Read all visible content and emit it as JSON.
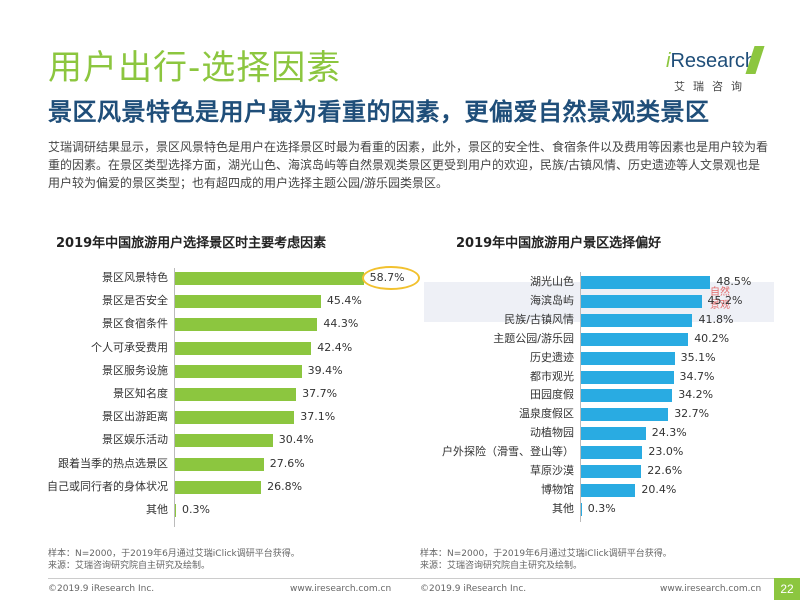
{
  "header": {
    "title": "用户出行-选择因素",
    "subtitle": "景区风景特色是用户最为看重的因素，更偏爱自然景观类景区",
    "description": "艾瑞调研结果显示，景区风景特色是用户在选择景区时最为看重的因素，此外，景区的安全性、食宿条件以及费用等因素也是用户较为看重的因素。在景区类型选择方面，湖光山色、海滨岛屿等自然景观类景区更受到用户的欢迎，民族/古镇风情、历史遗迹等人文景观也是用户较为偏爱的景区类型；也有超四成的用户选择主题公园/游乐园类景区。"
  },
  "logo": {
    "brand_i": "i",
    "brand_rest": "Research",
    "sub": "艾瑞咨询"
  },
  "colors": {
    "bar": "#8cc63f",
    "bar_right": "#29abe2",
    "title": "#8cc63f",
    "subtitle": "#1f4e79"
  },
  "chart_data": [
    {
      "type": "bar",
      "orientation": "horizontal",
      "title": "2019年中国旅游用户选择景区时主要考虑因素",
      "categories": [
        "景区风景特色",
        "景区是否安全",
        "景区食宿条件",
        "个人可承受费用",
        "景区服务设施",
        "景区知名度",
        "景区出游距离",
        "景区娱乐活动",
        "跟着当季的热点选景区",
        "自己或同行者的身体状况",
        "其他"
      ],
      "values": [
        58.7,
        45.4,
        44.3,
        42.4,
        39.4,
        37.7,
        37.1,
        30.4,
        27.6,
        26.8,
        0.3
      ],
      "value_labels": [
        "58.7%",
        "45.4%",
        "44.3%",
        "42.4%",
        "39.4%",
        "37.7%",
        "37.1%",
        "30.4%",
        "27.6%",
        "26.8%",
        "0.3%"
      ],
      "xlim": [
        0,
        70
      ],
      "highlight_index": 0
    },
    {
      "type": "bar",
      "orientation": "horizontal",
      "title": "2019年中国旅游用户景区选择偏好",
      "categories": [
        "湖光山色",
        "海滨岛屿",
        "民族/古镇风情",
        "主题公园/游乐园",
        "历史遗迹",
        "都市观光",
        "田园度假",
        "温泉度假区",
        "动植物园",
        "户外探险（滑雪、登山等）",
        "草原沙漠",
        "博物馆",
        "其他"
      ],
      "values": [
        48.5,
        45.2,
        41.8,
        40.2,
        35.1,
        34.7,
        34.2,
        32.7,
        24.3,
        23.0,
        22.6,
        20.4,
        0.3
      ],
      "value_labels": [
        "48.5%",
        "45.2%",
        "41.8%",
        "40.2%",
        "35.1%",
        "34.7%",
        "34.2%",
        "32.7%",
        "24.3%",
        "23.0%",
        "22.6%",
        "20.4%",
        "0.3%"
      ],
      "xlim": [
        0,
        60
      ],
      "annotation": "自然景观"
    }
  ],
  "notes": {
    "left": "样本：N=2000，于2019年6月通过艾瑞iClick调研平台获得。\n来源：艾瑞咨询研究院自主研究及绘制。",
    "right": "样本：N=2000，于2019年6月通过艾瑞iClick调研平台获得。\n来源：艾瑞咨询研究院自主研究及绘制。"
  },
  "footer": {
    "copyright_left": "©2019.9 iResearch Inc.",
    "url_left": "www.iresearch.com.cn",
    "copyright_right": "©2019.9 iResearch Inc.",
    "url_right": "www.iresearch.com.cn",
    "page_number": "22"
  }
}
